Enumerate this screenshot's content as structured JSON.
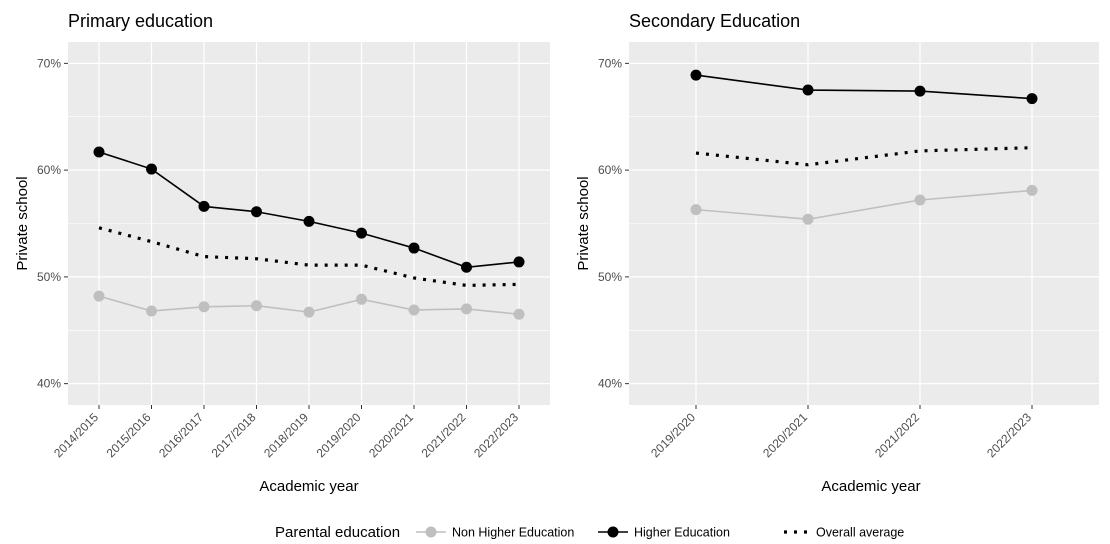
{
  "colors": {
    "panel_background": "#ebebeb",
    "grid_major": "#ffffff",
    "non_higher": "#bfbfbf",
    "higher": "#000000",
    "overall": "#000000"
  },
  "legend": {
    "title": "Parental education",
    "placement": "bottom",
    "items": [
      {
        "label": "Non Higher Education",
        "style": "line-point",
        "color": "#bfbfbf"
      },
      {
        "label": "Higher Education",
        "style": "line-point",
        "color": "#000000"
      },
      {
        "label": "Overall average",
        "style": "dotted",
        "color": "#000000"
      }
    ]
  },
  "chart_data": [
    {
      "type": "line",
      "title": "Primary education",
      "xlabel": "Academic year",
      "ylabel": "Private school",
      "ylim": [
        0.38,
        0.72
      ],
      "yticks": [
        0.4,
        0.5,
        0.6,
        0.7
      ],
      "ytick_labels": [
        "40%",
        "50%",
        "60%",
        "70%"
      ],
      "grid": true,
      "categories": [
        "2014/2015",
        "2015/2016",
        "2016/2017",
        "2017/2018",
        "2018/2019",
        "2019/2020",
        "2020/2021",
        "2021/2022",
        "2022/2023"
      ],
      "series": [
        {
          "name": "Non Higher Education",
          "style": "line-point",
          "values": [
            0.482,
            0.468,
            0.472,
            0.473,
            0.467,
            0.479,
            0.469,
            0.47,
            0.465
          ]
        },
        {
          "name": "Higher Education",
          "style": "line-point",
          "values": [
            0.617,
            0.601,
            0.566,
            0.561,
            0.552,
            0.541,
            0.527,
            0.509,
            0.514
          ]
        },
        {
          "name": "Overall average",
          "style": "dotted",
          "values": [
            0.546,
            0.533,
            0.519,
            0.517,
            0.511,
            0.511,
            0.499,
            0.492,
            0.493
          ]
        }
      ]
    },
    {
      "type": "line",
      "title": "Secondary Education",
      "xlabel": "Academic year",
      "ylabel": "Private school",
      "ylim": [
        0.38,
        0.72
      ],
      "yticks": [
        0.4,
        0.5,
        0.6,
        0.7
      ],
      "ytick_labels": [
        "40%",
        "50%",
        "60%",
        "70%"
      ],
      "grid": true,
      "categories": [
        "2019/2020",
        "2020/2021",
        "2021/2022",
        "2022/2023"
      ],
      "series": [
        {
          "name": "Non Higher Education",
          "style": "line-point",
          "values": [
            0.563,
            0.554,
            0.572,
            0.581
          ]
        },
        {
          "name": "Higher Education",
          "style": "line-point",
          "values": [
            0.689,
            0.675,
            0.674,
            0.667
          ]
        },
        {
          "name": "Overall average",
          "style": "dotted",
          "values": [
            0.616,
            0.605,
            0.618,
            0.621
          ]
        }
      ]
    }
  ]
}
